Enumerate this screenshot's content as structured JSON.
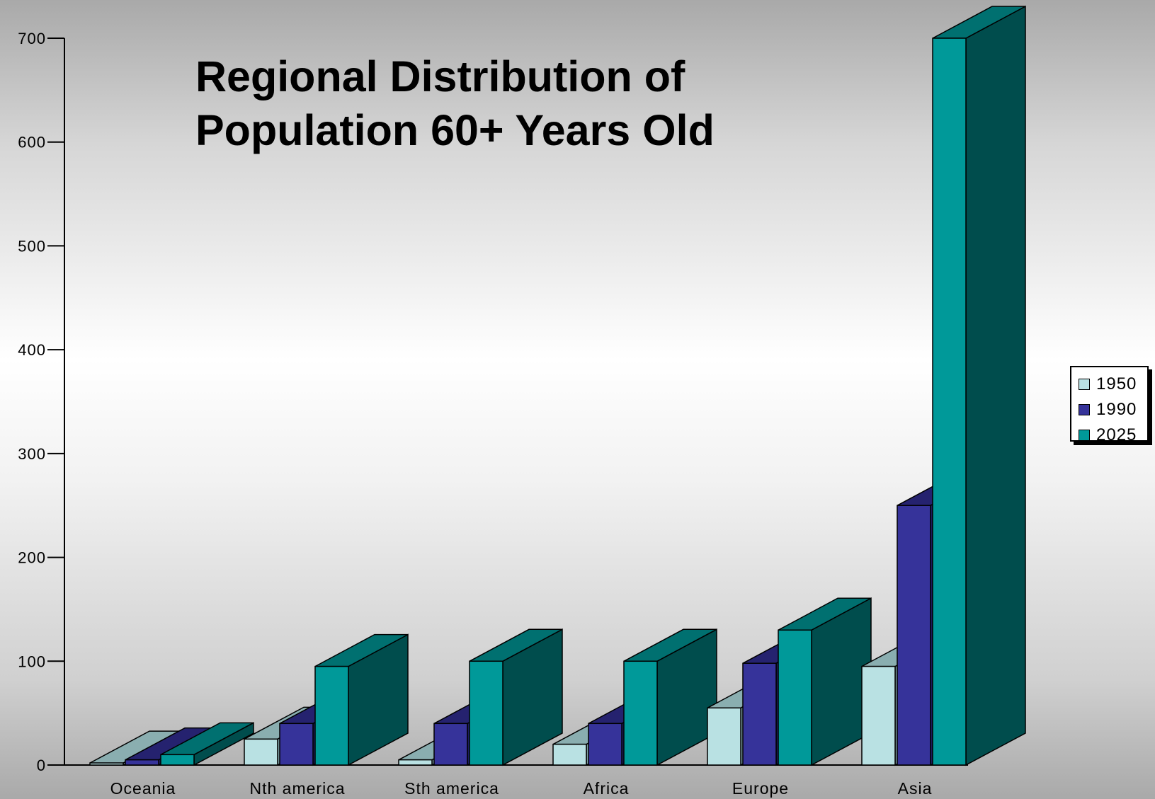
{
  "chart_data": {
    "type": "bar",
    "title": [
      "Regional Distribution of",
      "Population 60+ Years Old"
    ],
    "categories": [
      "Oceania",
      "Nth america",
      "Sth america",
      "Africa",
      "Europe",
      "Asia"
    ],
    "series": [
      {
        "name": "1950",
        "values": [
          2,
          25,
          5,
          20,
          55,
          95
        ],
        "color": "#b9e1e3",
        "side_color": "#7fa3a6",
        "top_color": "#8aaeb0"
      },
      {
        "name": "1990",
        "values": [
          5,
          40,
          40,
          40,
          98,
          250
        ],
        "color": "#36339a",
        "side_color": "#1f1d63",
        "top_color": "#25226f"
      },
      {
        "name": "2025",
        "values": [
          10,
          95,
          100,
          100,
          130,
          700
        ],
        "color": "#009999",
        "side_color": "#004d4d",
        "top_color": "#007070"
      }
    ],
    "yticks": [
      0,
      100,
      200,
      300,
      400,
      500,
      600,
      700
    ],
    "ylim": [
      0,
      700
    ],
    "xlabel": "",
    "ylabel": "",
    "legend_position": "right",
    "grid": false
  }
}
